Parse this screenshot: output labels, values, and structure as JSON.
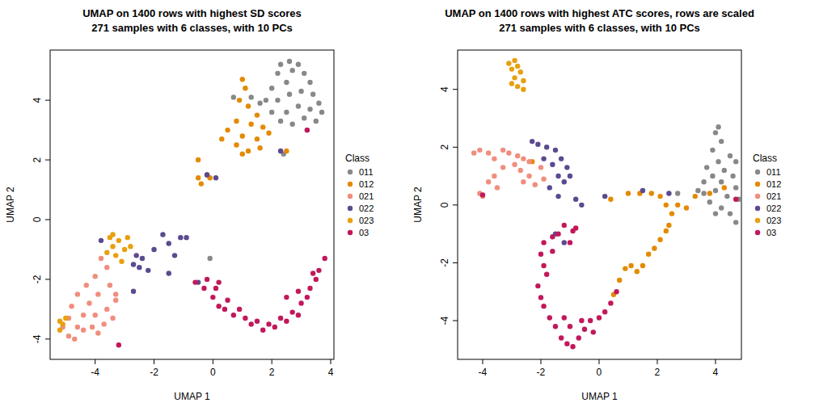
{
  "chart_data": [
    {
      "type": "scatter",
      "title": "UMAP on 1400 rows with highest SD scores",
      "subtitle": "271 samples with 6 classes, with 10 PCs",
      "x_label": "UMAP 1",
      "y_label": "UMAP 2",
      "xlim": [
        -5.53,
        4.11
      ],
      "ylim": [
        -4.68,
        5.68
      ],
      "xticks": [
        -4,
        -2,
        0,
        2,
        4
      ],
      "yticks": [
        -4,
        -2,
        0,
        2,
        4
      ],
      "legend": "right",
      "legend_title": "Class",
      "marker": "circle",
      "series": [
        {
          "name": "011",
          "color": "#888888",
          "x": [
            2.3,
            2.6,
            2.9,
            2.2,
            2.7,
            3.1,
            3.3,
            2.5,
            2.0,
            1.8,
            2.2,
            2.6,
            3.0,
            3.4,
            3.6,
            3.7,
            3.3,
            2.9,
            2.5,
            2.0,
            2.3,
            2.7,
            3.1,
            3.5,
            3.2,
            1.6,
            0.7,
            1.3,
            -0.1,
            2.4
          ],
          "values": [
            5.2,
            5.3,
            5.2,
            4.9,
            5.0,
            4.9,
            4.6,
            4.6,
            4.4,
            4.0,
            4.0,
            4.2,
            4.3,
            4.2,
            3.9,
            3.6,
            3.7,
            3.8,
            3.6,
            3.6,
            3.3,
            3.2,
            3.4,
            3.3,
            3.0,
            3.9,
            4.1,
            4.1,
            -1.3,
            2.2
          ]
        },
        {
          "name": "012",
          "color": "#E48A00",
          "x": [
            1.0,
            1.1,
            0.9,
            1.2,
            1.5,
            0.8,
            1.3,
            1.7,
            0.5,
            1.0,
            1.5,
            1.9,
            0.3,
            0.8,
            1.2,
            1.6,
            1.0,
            2.5,
            -0.5,
            -0.4,
            -0.5,
            -0.1,
            -0.2
          ],
          "values": [
            4.7,
            4.4,
            4.0,
            3.8,
            3.5,
            3.3,
            3.2,
            3.1,
            3.0,
            2.8,
            2.7,
            2.9,
            2.7,
            2.5,
            2.3,
            2.4,
            2.2,
            2.3,
            1.4,
            1.2,
            2.0,
            1.4,
            1.5
          ]
        },
        {
          "name": "021",
          "color": "#F08E7E",
          "x": [
            -3.8,
            -3.6,
            -4.0,
            -4.3,
            -3.5,
            -4.6,
            -3.9,
            -3.3,
            -4.2,
            -4.8,
            -3.6,
            -4.0,
            -4.4,
            -3.4,
            -4.9,
            -4.6,
            -4.1,
            -3.7,
            -4.9,
            -4.4,
            -5.1,
            -3.9,
            -4.7,
            -3.3
          ],
          "values": [
            -1.3,
            -1.6,
            -1.9,
            -2.2,
            -2.2,
            -2.5,
            -2.5,
            -2.7,
            -2.8,
            -2.9,
            -3.0,
            -3.2,
            -3.2,
            -3.3,
            -3.3,
            -3.6,
            -3.6,
            -3.5,
            -3.9,
            -3.7,
            -3.6,
            -3.8,
            -4.0,
            -2.5
          ]
        },
        {
          "name": "022",
          "color": "#5B4A8F",
          "x": [
            -2.6,
            -2.4,
            -2.5,
            -2.2,
            -2.7,
            -2.7,
            -2.0,
            -1.7,
            -1.5,
            -1.3,
            -1.1,
            -0.9,
            -1.5,
            -3.8,
            -0.5,
            -0.2,
            0.1,
            2.3
          ],
          "values": [
            -1.2,
            -1.3,
            -1.6,
            -1.7,
            -1.5,
            -2.4,
            -1.0,
            -0.5,
            -0.8,
            -1.2,
            -0.6,
            -0.6,
            -1.8,
            -0.7,
            -2.1,
            1.5,
            1.4,
            2.3
          ]
        },
        {
          "name": "023",
          "color": "#E8A010",
          "x": [
            -5.2,
            -5.1,
            -5.0,
            -5.2,
            -3.5,
            -3.2,
            -2.9,
            -3.4,
            -3.0,
            -3.6,
            -3.3,
            -3.1,
            -2.8,
            -3.4
          ],
          "values": [
            -3.4,
            -3.5,
            -3.3,
            -3.7,
            -0.6,
            -0.7,
            -0.6,
            -0.9,
            -1.0,
            -1.1,
            -1.2,
            -1.4,
            -0.9,
            -0.5
          ]
        },
        {
          "name": "03",
          "color": "#C2185B",
          "x": [
            -0.6,
            -0.3,
            -0.2,
            0.0,
            0.1,
            0.2,
            0.4,
            0.5,
            0.7,
            0.9,
            1.1,
            1.3,
            1.5,
            1.7,
            1.9,
            2.1,
            2.3,
            2.5,
            2.7,
            2.9,
            3.0,
            3.2,
            3.3,
            3.5,
            3.6,
            3.8,
            3.4,
            0.2,
            -3.2,
            3.2,
            2.5,
            2.9
          ],
          "values": [
            -2.1,
            -2.3,
            -2.0,
            -2.6,
            -2.3,
            -2.9,
            -3.0,
            -2.7,
            -3.2,
            -3.0,
            -3.3,
            -3.5,
            -3.4,
            -3.7,
            -3.5,
            -3.6,
            -3.3,
            -3.4,
            -3.1,
            -3.2,
            -2.8,
            -2.6,
            -2.3,
            -2.0,
            -1.7,
            -1.3,
            -1.8,
            -2.1,
            -4.2,
            3.0,
            -2.6,
            -2.4
          ]
        }
      ]
    },
    {
      "type": "scatter",
      "title": "UMAP on 1400 rows with highest ATC scores, rows are scaled",
      "subtitle": "271 samples with 6 classes, with 10 PCs",
      "x_label": "UMAP 1",
      "y_label": "UMAP 2",
      "xlim": [
        -4.86,
        4.89
      ],
      "ylim": [
        -5.34,
        5.36
      ],
      "xticks": [
        -4,
        -2,
        0,
        2,
        4
      ],
      "yticks": [
        -4,
        -2,
        0,
        2,
        4
      ],
      "legend": "right",
      "legend_title": "Class",
      "marker": "circle",
      "series": [
        {
          "name": "011",
          "color": "#888888",
          "x": [
            4.1,
            4.0,
            4.2,
            3.9,
            4.5,
            4.7,
            4.1,
            3.7,
            4.3,
            4.6,
            3.9,
            3.6,
            4.2,
            4.7,
            4.0,
            3.6,
            4.4,
            4.8,
            3.8,
            4.2,
            4.5,
            4.7,
            4.0,
            3.4,
            2.7
          ],
          "values": [
            2.7,
            2.5,
            2.2,
            1.9,
            1.7,
            1.5,
            1.5,
            1.3,
            1.2,
            1.0,
            1.0,
            0.8,
            0.8,
            0.6,
            0.5,
            0.4,
            0.3,
            0.2,
            0.1,
            -0.1,
            -0.3,
            -0.6,
            -0.3,
            0.5,
            0.4
          ]
        },
        {
          "name": "012",
          "color": "#E48A00",
          "x": [
            0.5,
            0.7,
            0.9,
            1.1,
            1.3,
            1.5,
            1.7,
            1.9,
            2.1,
            2.3,
            2.4,
            2.5,
            2.3,
            2.1,
            1.8,
            1.4,
            1.0,
            0.4,
            2.7,
            3.0,
            3.3,
            3.8,
            4.3,
            -2.3
          ],
          "values": [
            -3.1,
            -2.6,
            -2.2,
            -2.1,
            -2.3,
            -2.1,
            -1.7,
            -1.5,
            -1.2,
            -0.9,
            -0.7,
            -0.3,
            0.0,
            0.3,
            0.4,
            0.4,
            0.4,
            0.2,
            0.0,
            -0.1,
            0.3,
            0.4,
            0.6,
            1.5
          ]
        },
        {
          "name": "021",
          "color": "#F08E7E",
          "x": [
            -4.3,
            -4.1,
            -3.8,
            -3.6,
            -3.3,
            -3.1,
            -2.8,
            -2.6,
            -2.4,
            -2.9,
            -3.3,
            -2.7,
            -2.4,
            -2.0,
            -3.6,
            -3.8,
            -3.5,
            -2.6,
            -1.9,
            -2.2,
            -4.1,
            -4.0
          ],
          "values": [
            1.8,
            1.9,
            1.8,
            1.6,
            1.9,
            1.8,
            1.7,
            1.6,
            1.5,
            1.4,
            1.3,
            1.2,
            1.0,
            1.3,
            1.0,
            0.8,
            0.6,
            0.8,
            0.9,
            0.7,
            0.4,
            0.3
          ]
        },
        {
          "name": "022",
          "color": "#5B4A8F",
          "x": [
            -2.3,
            -2.1,
            -1.8,
            -1.5,
            -1.3,
            -1.1,
            -1.6,
            -1.9,
            -1.4,
            -1.2,
            -1.7,
            -1.4,
            -1.0,
            -0.8,
            -0.6,
            0.2,
            -1.5,
            -1.2,
            2.4,
            1.5
          ],
          "values": [
            2.2,
            2.1,
            2.0,
            1.9,
            1.6,
            1.3,
            1.4,
            1.6,
            1.0,
            0.8,
            0.6,
            0.3,
            1.0,
            0.2,
            0.0,
            0.3,
            -1.0,
            -1.3,
            0.4,
            0.5
          ]
        },
        {
          "name": "023",
          "color": "#E8A010",
          "x": [
            -2.9,
            -2.8,
            -3.0,
            -2.7,
            -2.9,
            -2.6,
            -3.0,
            -2.8,
            -2.6,
            -3.1
          ],
          "values": [
            5.0,
            4.8,
            4.7,
            4.6,
            4.4,
            4.3,
            4.2,
            4.1,
            4.0,
            4.9
          ]
        },
        {
          "name": "03",
          "color": "#C2185B",
          "x": [
            -1.2,
            -1.4,
            -1.6,
            -1.9,
            -2.0,
            -1.9,
            -1.8,
            -2.1,
            -2.0,
            -1.9,
            -1.7,
            -1.5,
            -1.3,
            -1.1,
            -0.9,
            -0.7,
            -0.5,
            -0.3,
            0.0,
            0.2,
            0.4,
            0.6,
            -0.6,
            -1.0,
            -1.2,
            -0.8,
            -0.9,
            -1.0,
            -4.0,
            4.7,
            -0.2,
            -1.6
          ],
          "values": [
            -0.7,
            -1.0,
            -1.1,
            -1.3,
            -1.7,
            -2.1,
            -2.4,
            -2.8,
            -3.2,
            -3.5,
            -3.9,
            -4.2,
            -4.6,
            -4.8,
            -4.9,
            -4.6,
            -4.3,
            -4.0,
            -3.9,
            -3.7,
            -3.4,
            -3.0,
            -4.0,
            -4.2,
            -3.9,
            -0.8,
            -0.9,
            -1.3,
            0.35,
            0.2,
            -4.4,
            -1.6
          ]
        }
      ]
    }
  ]
}
